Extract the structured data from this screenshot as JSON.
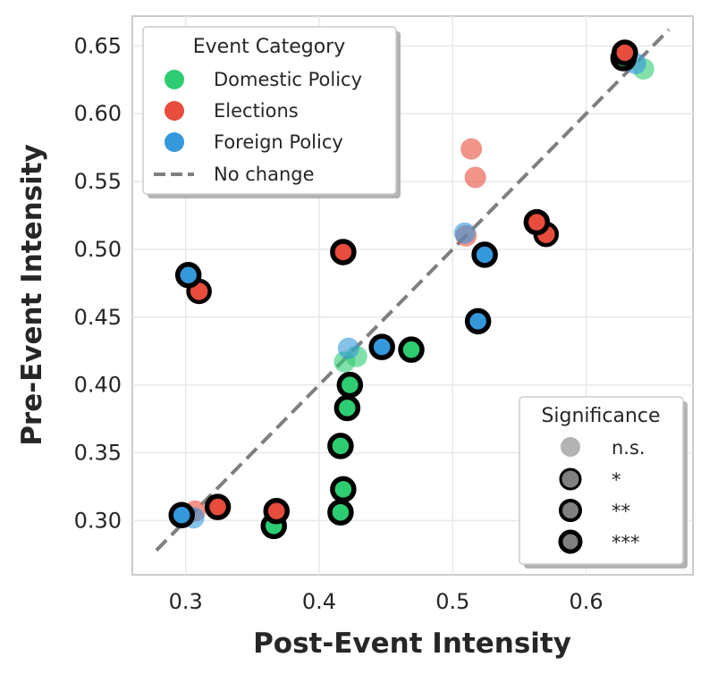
{
  "chart_data": {
    "type": "scatter",
    "xlabel": "Post-Event Intensity",
    "ylabel": "Pre-Event Intensity",
    "xlim": [
      0.26,
      0.68
    ],
    "ylim": [
      0.26,
      0.672
    ],
    "xticks": [
      0.3,
      0.4,
      0.5,
      0.6
    ],
    "yticks": [
      0.3,
      0.35,
      0.4,
      0.45,
      0.5,
      0.55,
      0.6,
      0.65
    ],
    "grid": true,
    "reference_line": {
      "label": "No change",
      "from": [
        0.278,
        0.278
      ],
      "to": [
        0.662,
        0.662
      ]
    },
    "colors": {
      "Domestic Policy": "#2ecc71",
      "Elections": "#e74c3c",
      "Foreign Policy": "#3498db",
      "reference": "#7f7f7f"
    },
    "series": [
      {
        "name": "Domestic Policy",
        "points": [
          {
            "x": 0.643,
            "y": 0.633,
            "sig": "n.s."
          },
          {
            "x": 0.628,
            "y": 0.641,
            "sig": "***"
          },
          {
            "x": 0.469,
            "y": 0.426,
            "sig": "***"
          },
          {
            "x": 0.428,
            "y": 0.421,
            "sig": "n.s."
          },
          {
            "x": 0.419,
            "y": 0.417,
            "sig": "n.s."
          },
          {
            "x": 0.423,
            "y": 0.4,
            "sig": "***"
          },
          {
            "x": 0.421,
            "y": 0.383,
            "sig": "***"
          },
          {
            "x": 0.416,
            "y": 0.355,
            "sig": "***"
          },
          {
            "x": 0.418,
            "y": 0.323,
            "sig": "***"
          },
          {
            "x": 0.416,
            "y": 0.306,
            "sig": "***"
          },
          {
            "x": 0.366,
            "y": 0.296,
            "sig": "***"
          }
        ]
      },
      {
        "name": "Elections",
        "points": [
          {
            "x": 0.629,
            "y": 0.645,
            "sig": "***"
          },
          {
            "x": 0.57,
            "y": 0.511,
            "sig": "**"
          },
          {
            "x": 0.563,
            "y": 0.52,
            "sig": "***"
          },
          {
            "x": 0.514,
            "y": 0.574,
            "sig": "n.s."
          },
          {
            "x": 0.517,
            "y": 0.553,
            "sig": "n.s."
          },
          {
            "x": 0.51,
            "y": 0.51,
            "sig": "n.s."
          },
          {
            "x": 0.418,
            "y": 0.498,
            "sig": "***"
          },
          {
            "x": 0.31,
            "y": 0.469,
            "sig": "**"
          },
          {
            "x": 0.324,
            "y": 0.31,
            "sig": "***"
          },
          {
            "x": 0.307,
            "y": 0.307,
            "sig": "n.s."
          },
          {
            "x": 0.368,
            "y": 0.307,
            "sig": "***"
          }
        ]
      },
      {
        "name": "Foreign Policy",
        "points": [
          {
            "x": 0.637,
            "y": 0.637,
            "sig": "n.s."
          },
          {
            "x": 0.509,
            "y": 0.512,
            "sig": "n.s."
          },
          {
            "x": 0.524,
            "y": 0.496,
            "sig": "***"
          },
          {
            "x": 0.519,
            "y": 0.447,
            "sig": "***"
          },
          {
            "x": 0.447,
            "y": 0.428,
            "sig": "***"
          },
          {
            "x": 0.422,
            "y": 0.427,
            "sig": "n.s."
          },
          {
            "x": 0.302,
            "y": 0.481,
            "sig": "***"
          },
          {
            "x": 0.306,
            "y": 0.302,
            "sig": "n.s."
          },
          {
            "x": 0.297,
            "y": 0.304,
            "sig": "***"
          }
        ]
      }
    ],
    "legend_category": {
      "title": "Event Category",
      "placement": "upper-left",
      "entries": [
        "Domestic Policy",
        "Elections",
        "Foreign Policy",
        "No change"
      ]
    },
    "legend_significance": {
      "title": "Significance",
      "placement": "lower-right",
      "entries": [
        "n.s.",
        "*",
        "**",
        "***"
      ]
    }
  }
}
